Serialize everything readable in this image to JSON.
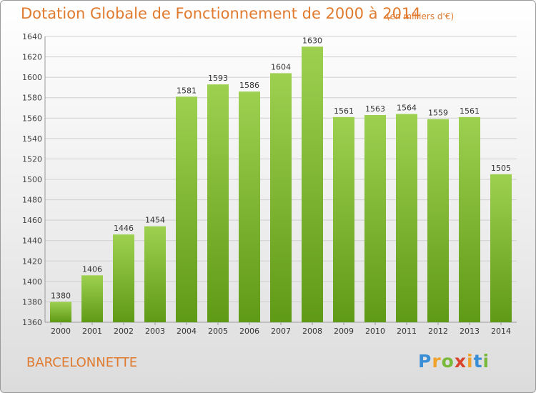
{
  "title": "Dotation Globale de Fonctionnement de 2000 à 2014",
  "subtitle": "(en milliers d'€)",
  "city": "BARCELONNETTE",
  "logo": {
    "letters": [
      "P",
      "r",
      "o",
      "x",
      "i",
      "t",
      "i"
    ],
    "colors": [
      "#3a8ed6",
      "#f0a22a",
      "#7ab83a",
      "#d9432b",
      "#f0a22a",
      "#3a8ed6",
      "#7ab83a"
    ]
  },
  "colors": {
    "bar_top": "#9ed050",
    "bar_bottom": "#5f9a16",
    "text": "#e07a2e"
  },
  "chart_data": {
    "type": "bar",
    "categories": [
      "2000",
      "2001",
      "2002",
      "2003",
      "2004",
      "2005",
      "2006",
      "2007",
      "2008",
      "2009",
      "2010",
      "2011",
      "2012",
      "2013",
      "2014"
    ],
    "values": [
      1380,
      1406,
      1446,
      1454,
      1581,
      1593,
      1586,
      1604,
      1630,
      1561,
      1563,
      1564,
      1559,
      1561,
      1505
    ],
    "yticks": [
      1360,
      1380,
      1400,
      1420,
      1440,
      1460,
      1480,
      1500,
      1520,
      1540,
      1560,
      1580,
      1600,
      1620,
      1640
    ],
    "ylim": [
      1360,
      1640
    ],
    "grid": true
  }
}
